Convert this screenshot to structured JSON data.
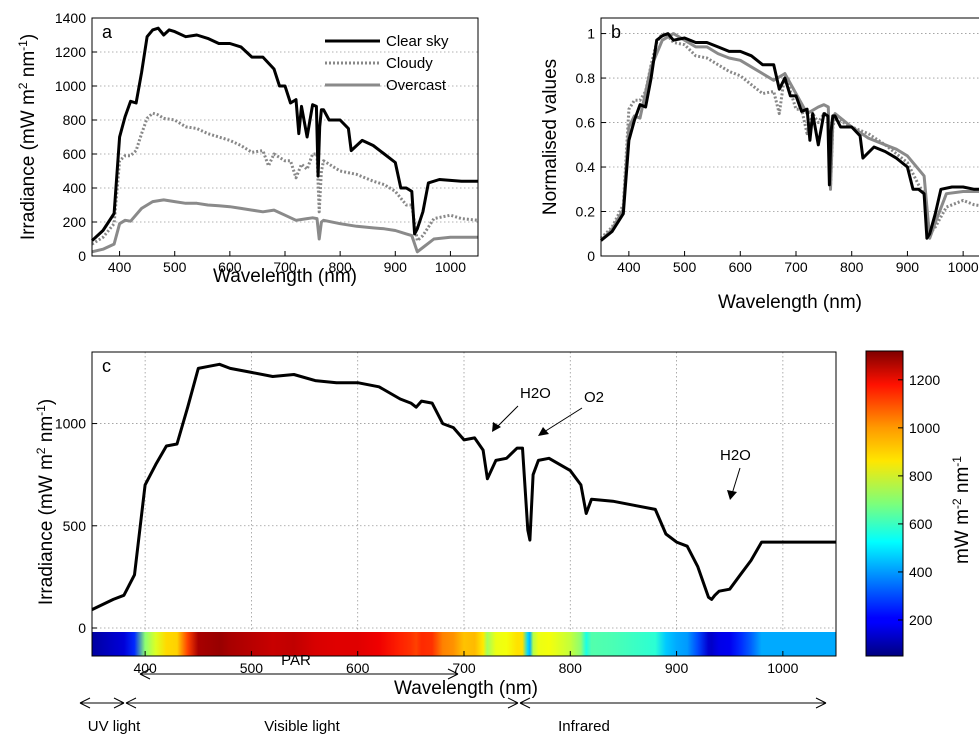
{
  "panels": {
    "a": {
      "label": "a",
      "xlabel": "Wavelength (nm)",
      "ylabel": "Irradiance (mW m",
      "ylabel_sup1": "2",
      "ylabel_mid": " nm",
      "ylabel_sup2": "-1",
      "ylabel_end": ")"
    },
    "b": {
      "label": "b",
      "xlabel": "Wavelength (nm)",
      "ylabel": "Normalised  values"
    },
    "c": {
      "label": "c",
      "xlabel": "Wavelength (nm)",
      "ylabel": "Irradiance (mW m",
      "ylabel_sup1": "2",
      "ylabel_mid": " nm",
      "ylabel_sup2": "-1",
      "ylabel_end": ")"
    },
    "colorbar": {
      "label": "mW m",
      "label_sup1": "-2",
      "label_mid": " nm",
      "label_sup2": "-1"
    }
  },
  "annotations": {
    "h2o_1": "H2O",
    "o2": "O2",
    "h2o_2": "H2O"
  },
  "bands": {
    "par": "PAR",
    "uv": "UV light",
    "visible": "Visible light",
    "infrared": "Infrared"
  },
  "chart_data": [
    {
      "id": "a",
      "type": "line",
      "title": "",
      "xlabel": "Wavelength (nm)",
      "ylabel": "Irradiance (mW m-2 nm-1)",
      "xlim": [
        350,
        1050
      ],
      "ylim": [
        0,
        1400
      ],
      "xticks": [
        400,
        500,
        600,
        700,
        800,
        900,
        1000
      ],
      "yticks": [
        0,
        200,
        400,
        600,
        800,
        1000,
        1200,
        1400
      ],
      "grid": "horizontal dotted",
      "legend": "top-right",
      "series": [
        {
          "name": "Clear sky",
          "color": "#000000",
          "style": "solid",
          "x": [
            350,
            370,
            390,
            400,
            410,
            420,
            430,
            440,
            450,
            460,
            470,
            480,
            490,
            500,
            520,
            540,
            560,
            580,
            600,
            620,
            640,
            660,
            680,
            690,
            700,
            710,
            720,
            725,
            730,
            740,
            750,
            757,
            760,
            763,
            766,
            770,
            780,
            800,
            815,
            820,
            840,
            860,
            880,
            900,
            910,
            920,
            930,
            935,
            940,
            950,
            960,
            980,
            1000,
            1020,
            1050
          ],
          "y": [
            90,
            150,
            250,
            700,
            820,
            910,
            900,
            1080,
            1290,
            1330,
            1340,
            1300,
            1330,
            1320,
            1290,
            1300,
            1280,
            1250,
            1250,
            1230,
            1170,
            1170,
            1100,
            1000,
            1000,
            900,
            920,
            720,
            880,
            700,
            890,
            880,
            470,
            760,
            860,
            860,
            800,
            800,
            750,
            620,
            680,
            650,
            600,
            550,
            400,
            400,
            380,
            130,
            160,
            260,
            430,
            450,
            445,
            440,
            440
          ]
        },
        {
          "name": "Cloudy",
          "color": "#888888",
          "style": "dotted",
          "x": [
            350,
            370,
            390,
            400,
            410,
            420,
            430,
            440,
            450,
            460,
            470,
            480,
            500,
            520,
            540,
            560,
            580,
            600,
            620,
            640,
            660,
            670,
            680,
            700,
            710,
            720,
            730,
            740,
            750,
            758,
            762,
            766,
            770,
            800,
            830,
            860,
            880,
            900,
            920,
            930,
            940,
            950,
            970,
            1000,
            1020,
            1050
          ],
          "y": [
            70,
            110,
            190,
            560,
            590,
            590,
            620,
            720,
            810,
            840,
            830,
            810,
            800,
            760,
            750,
            720,
            700,
            680,
            650,
            610,
            620,
            530,
            600,
            560,
            560,
            460,
            540,
            510,
            600,
            600,
            260,
            500,
            560,
            500,
            480,
            440,
            420,
            380,
            300,
            300,
            90,
            120,
            220,
            240,
            220,
            210
          ]
        },
        {
          "name": "Overcast",
          "color": "#8a8a8a",
          "style": "solid",
          "x": [
            350,
            370,
            390,
            400,
            410,
            420,
            440,
            460,
            480,
            500,
            520,
            540,
            560,
            580,
            600,
            620,
            640,
            660,
            680,
            700,
            720,
            740,
            750,
            758,
            762,
            766,
            770,
            800,
            830,
            860,
            880,
            900,
            920,
            930,
            940,
            950,
            970,
            1000,
            1050
          ],
          "y": [
            25,
            40,
            70,
            190,
            210,
            205,
            280,
            320,
            330,
            320,
            310,
            310,
            300,
            295,
            290,
            280,
            270,
            260,
            270,
            240,
            210,
            220,
            225,
            220,
            100,
            200,
            210,
            190,
            175,
            165,
            160,
            150,
            130,
            120,
            25,
            50,
            100,
            110,
            110
          ]
        }
      ]
    },
    {
      "id": "b",
      "type": "line",
      "title": "",
      "xlabel": "Wavelength (nm)",
      "ylabel": "Normalised  values",
      "xlim": [
        350,
        1050
      ],
      "ylim": [
        0,
        1.07
      ],
      "xticks": [
        400,
        500,
        600,
        700,
        800,
        900,
        1000
      ],
      "yticks": [
        0,
        0.2,
        0.4,
        0.6,
        0.8,
        1
      ],
      "grid": "horizontal dotted",
      "series": [
        {
          "name": "Clear sky",
          "color": "#000000",
          "style": "solid",
          "x": [
            350,
            370,
            390,
            400,
            410,
            420,
            430,
            440,
            450,
            460,
            470,
            480,
            500,
            520,
            540,
            560,
            580,
            600,
            620,
            640,
            660,
            670,
            680,
            690,
            700,
            710,
            720,
            725,
            730,
            740,
            750,
            757,
            760,
            763,
            766,
            770,
            780,
            800,
            815,
            820,
            840,
            860,
            880,
            900,
            910,
            920,
            930,
            935,
            940,
            950,
            960,
            980,
            1000,
            1020,
            1050
          ],
          "y": [
            0.07,
            0.11,
            0.19,
            0.52,
            0.61,
            0.68,
            0.67,
            0.8,
            0.97,
            0.99,
            1.0,
            0.97,
            0.98,
            0.96,
            0.96,
            0.94,
            0.92,
            0.92,
            0.9,
            0.86,
            0.86,
            0.75,
            0.8,
            0.72,
            0.72,
            0.65,
            0.66,
            0.52,
            0.64,
            0.5,
            0.64,
            0.63,
            0.32,
            0.56,
            0.63,
            0.63,
            0.58,
            0.58,
            0.54,
            0.44,
            0.49,
            0.47,
            0.44,
            0.4,
            0.3,
            0.3,
            0.28,
            0.08,
            0.1,
            0.19,
            0.3,
            0.31,
            0.31,
            0.3,
            0.3
          ]
        },
        {
          "name": "Cloudy",
          "color": "#888888",
          "style": "dotted",
          "x": [
            350,
            370,
            390,
            400,
            410,
            420,
            430,
            440,
            450,
            460,
            470,
            480,
            500,
            520,
            540,
            560,
            580,
            600,
            620,
            640,
            660,
            670,
            680,
            700,
            710,
            720,
            730,
            740,
            750,
            758,
            762,
            766,
            770,
            800,
            830,
            860,
            880,
            900,
            920,
            930,
            940,
            950,
            970,
            1000,
            1020,
            1050
          ],
          "y": [
            0.08,
            0.13,
            0.23,
            0.66,
            0.7,
            0.7,
            0.74,
            0.86,
            0.96,
            1.0,
            0.99,
            0.96,
            0.95,
            0.9,
            0.89,
            0.86,
            0.83,
            0.81,
            0.77,
            0.73,
            0.74,
            0.64,
            0.82,
            0.66,
            0.66,
            0.55,
            0.64,
            0.6,
            0.64,
            0.64,
            0.31,
            0.58,
            0.62,
            0.58,
            0.55,
            0.5,
            0.46,
            0.42,
            0.32,
            0.28,
            0.1,
            0.13,
            0.22,
            0.25,
            0.23,
            0.22
          ]
        },
        {
          "name": "Overcast",
          "color": "#8a8a8a",
          "style": "solid",
          "x": [
            350,
            370,
            390,
            400,
            410,
            420,
            440,
            460,
            480,
            500,
            520,
            540,
            560,
            580,
            600,
            620,
            640,
            660,
            680,
            700,
            720,
            740,
            750,
            758,
            762,
            766,
            770,
            800,
            830,
            860,
            880,
            900,
            920,
            930,
            940,
            950,
            970,
            1000,
            1050
          ],
          "y": [
            0.07,
            0.12,
            0.21,
            0.58,
            0.63,
            0.62,
            0.85,
            0.97,
            1.0,
            0.97,
            0.94,
            0.94,
            0.91,
            0.89,
            0.88,
            0.85,
            0.82,
            0.79,
            0.82,
            0.73,
            0.64,
            0.67,
            0.68,
            0.67,
            0.3,
            0.6,
            0.64,
            0.58,
            0.53,
            0.5,
            0.48,
            0.45,
            0.39,
            0.36,
            0.08,
            0.15,
            0.28,
            0.29,
            0.29
          ]
        }
      ]
    },
    {
      "id": "c",
      "type": "line",
      "title": "",
      "xlabel": "Wavelength (nm)",
      "ylabel": "Irradiance (mW m-2 nm-1)",
      "xlim": [
        350,
        1050
      ],
      "ylim": [
        0,
        1350
      ],
      "xticks": [
        400,
        500,
        600,
        700,
        800,
        900,
        1000
      ],
      "yticks": [
        0,
        500,
        1000
      ],
      "grid": "dotted both",
      "series": [
        {
          "name": "",
          "color": "#000000",
          "style": "solid",
          "x": [
            350,
            370,
            380,
            390,
            400,
            410,
            420,
            430,
            440,
            450,
            460,
            470,
            480,
            490,
            500,
            520,
            540,
            560,
            580,
            600,
            620,
            640,
            650,
            655,
            660,
            670,
            680,
            690,
            700,
            710,
            718,
            722,
            730,
            740,
            750,
            755,
            760,
            762,
            765,
            770,
            780,
            800,
            810,
            815,
            820,
            840,
            860,
            880,
            890,
            900,
            910,
            920,
            930,
            933,
            936,
            940,
            950,
            960,
            970,
            980,
            1000,
            1020,
            1050
          ],
          "y": [
            90,
            140,
            160,
            260,
            700,
            800,
            890,
            900,
            1080,
            1270,
            1280,
            1290,
            1270,
            1260,
            1250,
            1230,
            1240,
            1210,
            1200,
            1200,
            1180,
            1120,
            1100,
            1080,
            1110,
            1100,
            1000,
            980,
            920,
            930,
            870,
            730,
            820,
            830,
            880,
            880,
            480,
            430,
            750,
            820,
            830,
            770,
            700,
            560,
            630,
            620,
            600,
            580,
            460,
            420,
            400,
            300,
            150,
            140,
            160,
            180,
            190,
            260,
            330,
            420,
            420,
            420,
            420
          ]
        }
      ]
    },
    {
      "id": "colorbar",
      "type": "heatmap",
      "title": "",
      "label": "mW m-2 nm-1",
      "range": [
        50,
        1320
      ],
      "ticks": [
        200,
        400,
        600,
        800,
        1000,
        1200
      ],
      "colormap": "jet"
    }
  ],
  "band_ranges": {
    "par": [
      400,
      700
    ],
    "uv": [
      350,
      380
    ],
    "visible": [
      380,
      750
    ],
    "infrared": [
      750,
      1050
    ]
  }
}
